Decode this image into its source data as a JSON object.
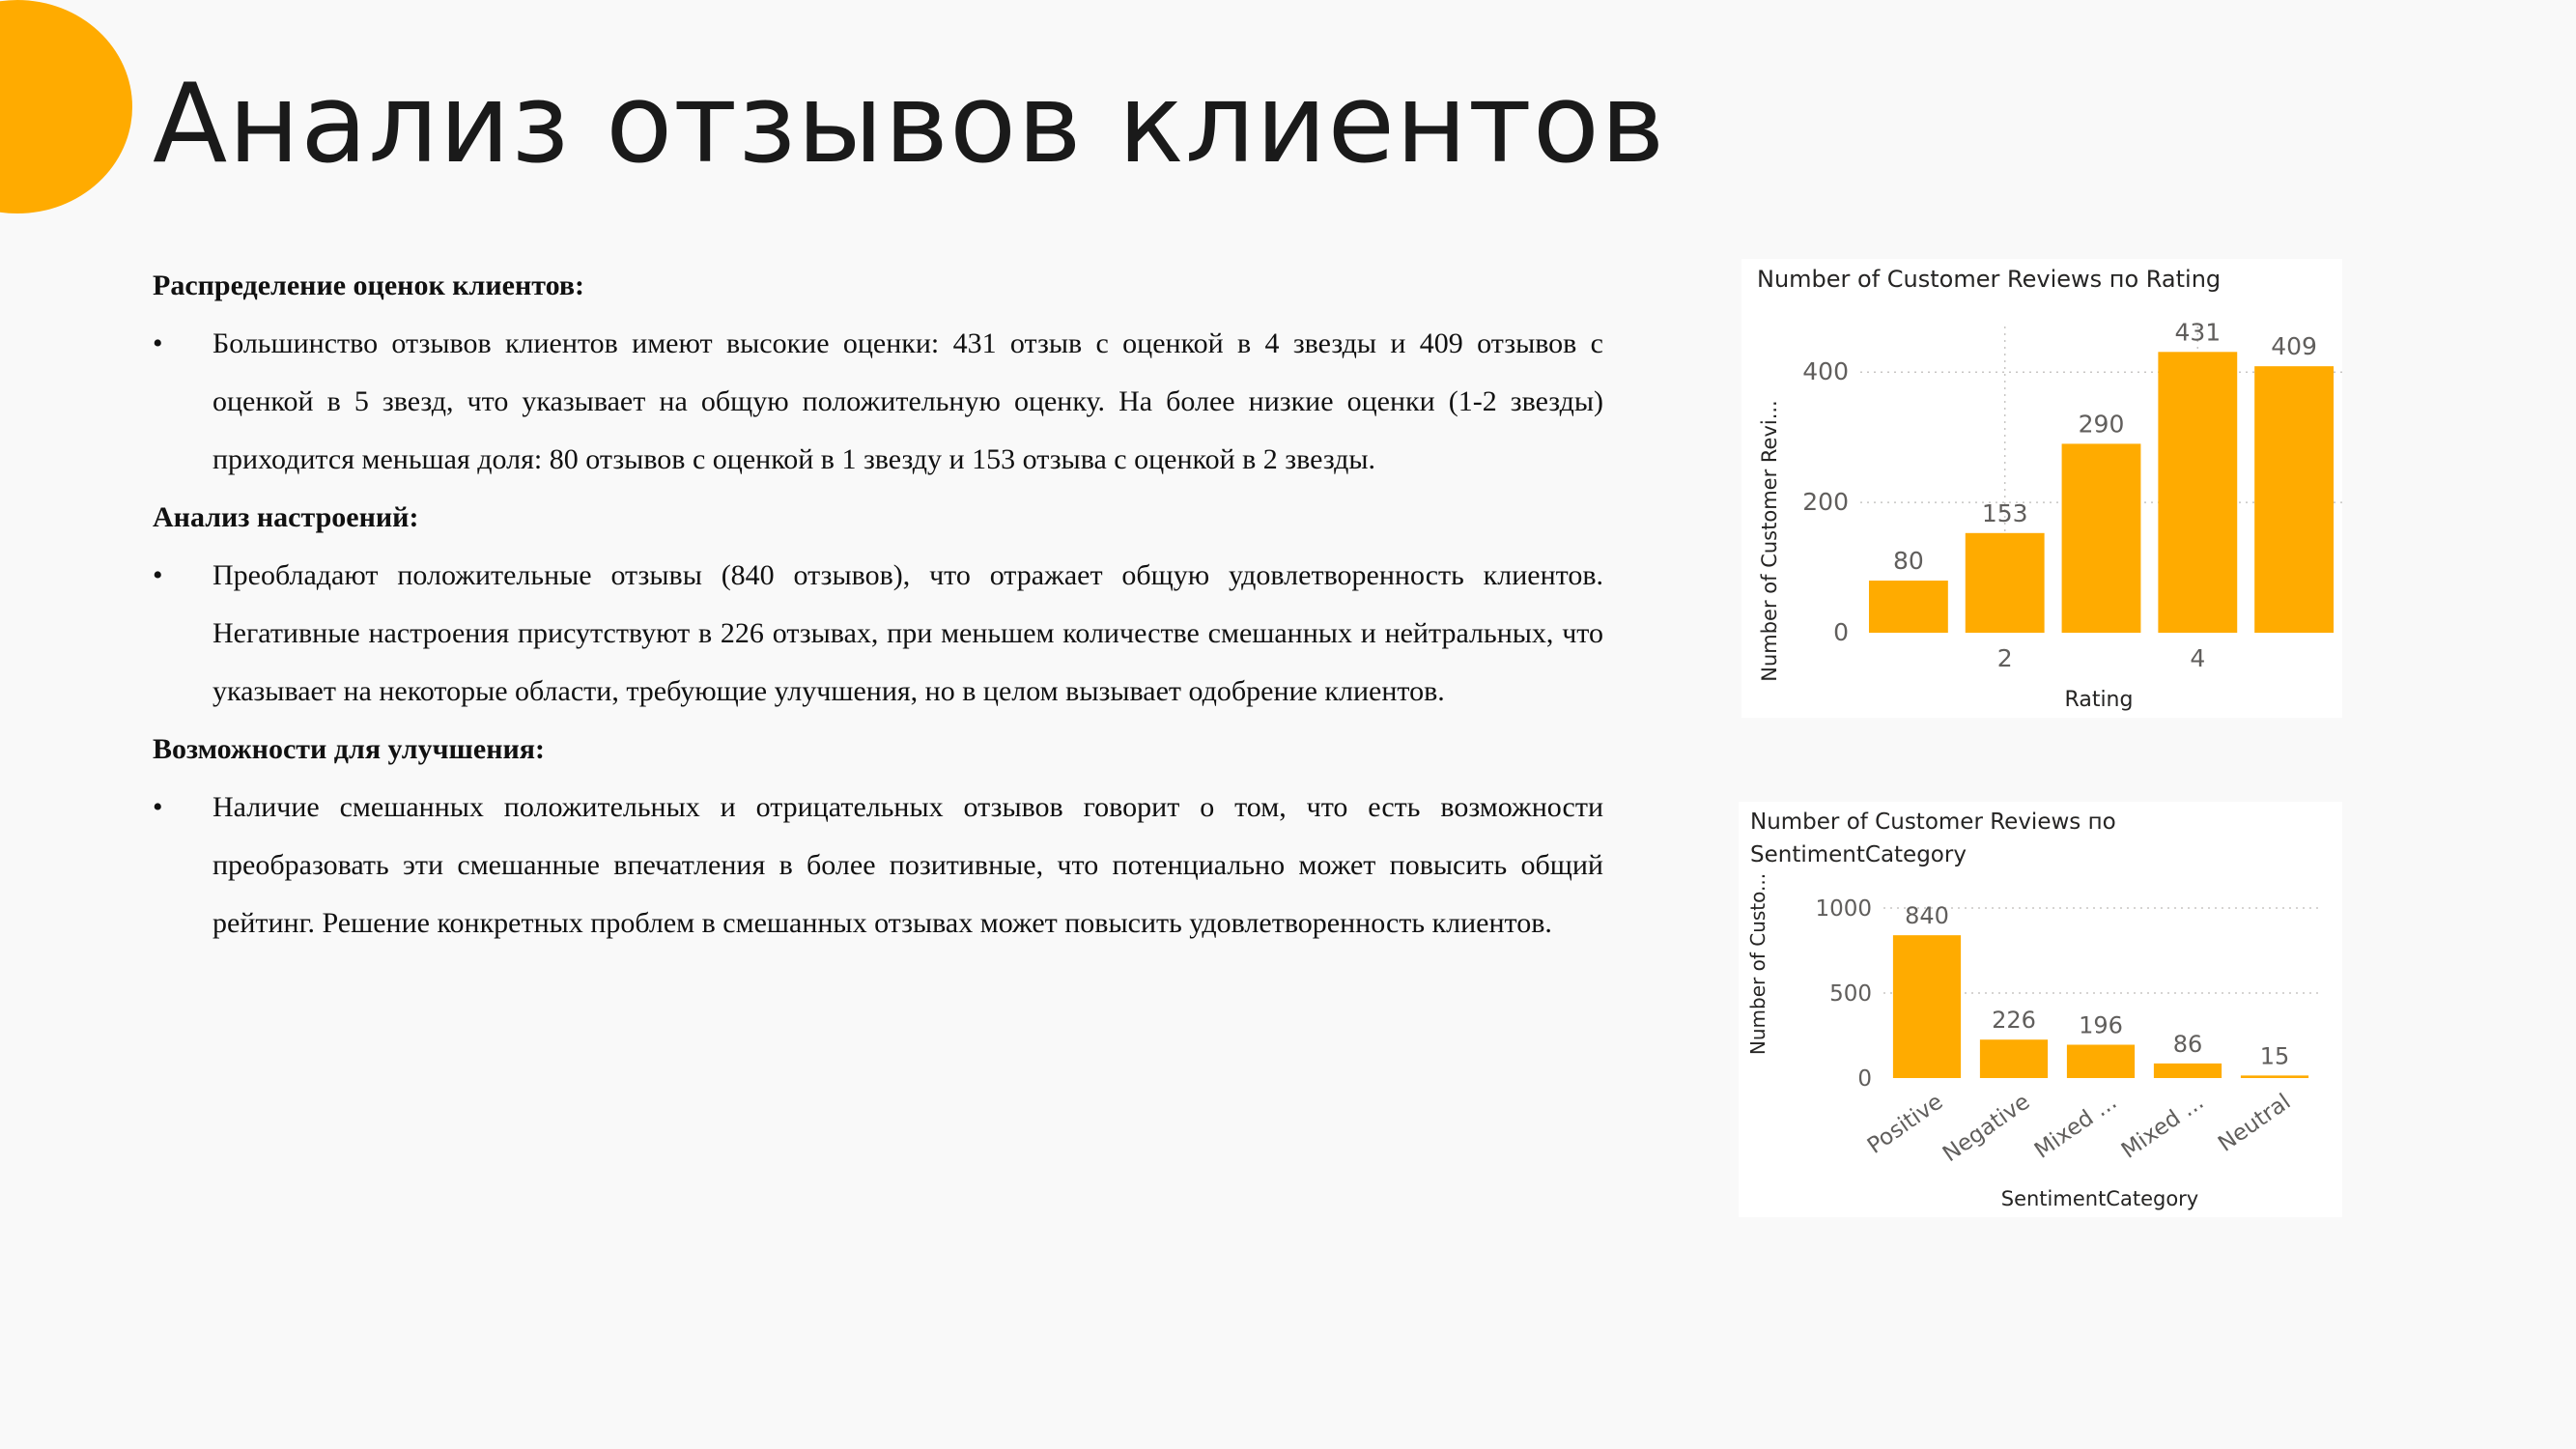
{
  "slide": {
    "title": "Анализ отзывов клиентов"
  },
  "sections": [
    {
      "heading": "Распределение оценок клиентов:",
      "bullet": "•",
      "text": "Большинство отзывов клиентов имеют высокие оценки: 431 отзыв с оценкой в 4 звезды и 409 отзывов с оценкой в 5 звезд, что указывает на общую положительную оценку. На более низкие оценки (1-2 звезды) приходится меньшая доля: 80 отзывов с оценкой в 1 звезду и 153 отзыва с оценкой в 2 звезды."
    },
    {
      "heading": "Анализ настроений:",
      "bullet": "•",
      "text": "Преобладают положительные отзывы (840 отзывов), что отражает общую удовлетворенность клиентов. Негативные настроения присутствуют в 226 отзывах, при меньшем количестве смешанных и нейтральных, что указывает на некоторые области, требующие улучшения, но в целом вызывает одобрение клиентов."
    },
    {
      "heading": "Возможности для улучшения:",
      "bullet": "•",
      "text": "Наличие смешанных положительных и отрицательных отзывов говорит о том, что есть возможности преобразовать эти смешанные впечатления в более позитивные, что потенциально может повысить общий рейтинг. Решение конкретных проблем в смешанных отзывах может повысить удовлетворенность клиентов."
    }
  ],
  "chart_data": [
    {
      "type": "bar",
      "title": "Number of Customer Reviews по Rating",
      "xlabel": "Rating",
      "ylabel": "Number of Customer Revi...",
      "categories": [
        1,
        2,
        3,
        4,
        5
      ],
      "category_tick_labels": [
        "",
        "2",
        "",
        "4",
        ""
      ],
      "values": [
        80,
        153,
        290,
        431,
        409
      ],
      "data_labels": [
        "80",
        "153",
        "290",
        "431",
        "409"
      ],
      "ylim": [
        0,
        470
      ],
      "yticks": [
        0,
        200,
        400
      ],
      "ytick_labels": [
        "0",
        "200",
        "400"
      ],
      "grid": "dotted",
      "legend": "none",
      "bar_color": "#ffab00"
    },
    {
      "type": "bar",
      "title": "Number of Customer Reviews по SentimentCategory",
      "title_lines": [
        "Number of Customer Reviews по",
        "SentimentCategory"
      ],
      "xlabel": "SentimentCategory",
      "ylabel": "Number of Custo...",
      "categories": [
        "Positive",
        "Negative",
        "Mixed ...",
        "Mixed ...",
        "Neutral"
      ],
      "values": [
        840,
        226,
        196,
        86,
        15
      ],
      "data_labels": [
        "840",
        "226",
        "196",
        "86",
        "15"
      ],
      "ylim": [
        0,
        1000
      ],
      "yticks": [
        0,
        500,
        1000
      ],
      "ytick_labels": [
        "0",
        "500",
        "1000"
      ],
      "grid": "dotted",
      "legend": "none",
      "bar_color": "#ffab00"
    }
  ]
}
